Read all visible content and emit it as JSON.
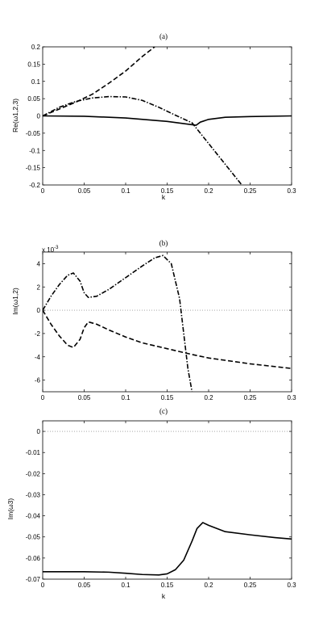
{
  "chart_data": [
    {
      "type": "line",
      "title": "(a)",
      "xlabel": "k",
      "ylabel": "Re(ω1,2,3)",
      "xlim": [
        0,
        0.3
      ],
      "ylim": [
        -0.2,
        0.2
      ],
      "xticks": [
        0,
        0.05,
        0.1,
        0.15,
        0.2,
        0.25,
        0.3
      ],
      "xtick_labels": [
        "0",
        "0.05",
        "0.1",
        "0.15",
        "0.2",
        "0.25",
        "0.3"
      ],
      "yticks": [
        -0.2,
        -0.15,
        -0.1,
        -0.05,
        0,
        0.05,
        0.1,
        0.15,
        0.2
      ],
      "ytick_labels": [
        "-0.2",
        "-0.15",
        "-0.1",
        "-0.05",
        "0",
        "0.05",
        "0.1",
        "0.15",
        "0.2"
      ],
      "grid": false,
      "series": [
        {
          "style": "dashed",
          "color": "#000000",
          "x": [
            0,
            0.02,
            0.04,
            0.06,
            0.08,
            0.1,
            0.12,
            0.135
          ],
          "y": [
            0,
            0.02,
            0.04,
            0.063,
            0.095,
            0.13,
            0.172,
            0.2
          ]
        },
        {
          "style": "dashdot",
          "color": "#000000",
          "x": [
            0,
            0.02,
            0.04,
            0.06,
            0.08,
            0.1,
            0.12,
            0.14,
            0.16,
            0.18,
            0.2,
            0.22,
            0.24
          ],
          "y": [
            0,
            0.025,
            0.042,
            0.052,
            0.056,
            0.055,
            0.045,
            0.025,
            0.002,
            -0.02,
            -0.08,
            -0.14,
            -0.2
          ]
        },
        {
          "style": "solid",
          "color": "#000000",
          "x": [
            0,
            0.05,
            0.1,
            0.15,
            0.185,
            0.19,
            0.2,
            0.22,
            0.25,
            0.3
          ],
          "y": [
            0,
            -0.001,
            -0.006,
            -0.016,
            -0.027,
            -0.018,
            -0.01,
            -0.004,
            -0.002,
            0
          ]
        }
      ]
    },
    {
      "type": "line",
      "title": "(b)",
      "xlabel": "",
      "ylabel": "Im(ω1,2)",
      "exponent_label": "x 10",
      "exponent_power": "-3",
      "xlim": [
        0,
        0.3
      ],
      "ylim": [
        -7,
        5
      ],
      "xticks": [
        0,
        0.05,
        0.1,
        0.15,
        0.2,
        0.25,
        0.3
      ],
      "xtick_labels": [
        "0",
        "0.05",
        "0.1",
        "0.15",
        "0.2",
        "0.25",
        "0.3"
      ],
      "yticks": [
        -6,
        -4,
        -2,
        0,
        2,
        4
      ],
      "ytick_labels": [
        "-6",
        "-4",
        "-2",
        "0",
        "2",
        "4"
      ],
      "grid": false,
      "series": [
        {
          "style": "dotted",
          "color": "#999999",
          "x": [
            0,
            0.3
          ],
          "y": [
            0,
            0
          ]
        },
        {
          "style": "dashdot",
          "color": "#000000",
          "x": [
            0,
            0.01,
            0.02,
            0.03,
            0.037,
            0.045,
            0.05,
            0.055,
            0.065,
            0.08,
            0.1,
            0.12,
            0.135,
            0.145,
            0.155,
            0.165,
            0.17,
            0.175,
            0.18
          ],
          "y": [
            0,
            1.2,
            2.2,
            3.0,
            3.2,
            2.5,
            1.5,
            1.1,
            1.2,
            1.8,
            2.8,
            3.8,
            4.5,
            4.7,
            4.0,
            1.0,
            -2.0,
            -5.0,
            -7.0
          ]
        },
        {
          "style": "dashed",
          "color": "#000000",
          "x": [
            0,
            0.01,
            0.02,
            0.03,
            0.037,
            0.045,
            0.05,
            0.055,
            0.065,
            0.08,
            0.1,
            0.12,
            0.15,
            0.18,
            0.2,
            0.25,
            0.3
          ],
          "y": [
            0,
            -1.2,
            -2.2,
            -3.0,
            -3.2,
            -2.5,
            -1.5,
            -1.0,
            -1.2,
            -1.7,
            -2.3,
            -2.8,
            -3.3,
            -3.8,
            -4.1,
            -4.6,
            -5.0
          ]
        }
      ]
    },
    {
      "type": "line",
      "title": "(c)",
      "xlabel": "k",
      "ylabel": "Im(ω3)",
      "xlim": [
        0,
        0.3
      ],
      "ylim": [
        -0.07,
        0.005
      ],
      "xticks": [
        0,
        0.05,
        0.1,
        0.15,
        0.2,
        0.25,
        0.3
      ],
      "xtick_labels": [
        "0",
        "0.05",
        "0.1",
        "0.15",
        "0.2",
        "0.25",
        "0.3"
      ],
      "yticks": [
        -0.07,
        -0.06,
        -0.05,
        -0.04,
        -0.03,
        -0.02,
        -0.01,
        0
      ],
      "ytick_labels": [
        "-0.07",
        "-0.06",
        "-0.05",
        "-0.04",
        "-0.03",
        "-0.02",
        "-0.01",
        "0"
      ],
      "grid": false,
      "series": [
        {
          "style": "dotted",
          "color": "#999999",
          "x": [
            0,
            0.3
          ],
          "y": [
            0,
            0
          ]
        },
        {
          "style": "solid",
          "color": "#000000",
          "x": [
            0,
            0.05,
            0.08,
            0.1,
            0.12,
            0.14,
            0.15,
            0.16,
            0.17,
            0.18,
            0.186,
            0.193,
            0.2,
            0.22,
            0.25,
            0.28,
            0.3
          ],
          "y": [
            -0.0665,
            -0.0665,
            -0.0667,
            -0.0672,
            -0.0678,
            -0.068,
            -0.0675,
            -0.0655,
            -0.061,
            -0.052,
            -0.046,
            -0.0432,
            -0.0445,
            -0.0475,
            -0.049,
            -0.0503,
            -0.051
          ]
        }
      ]
    }
  ]
}
